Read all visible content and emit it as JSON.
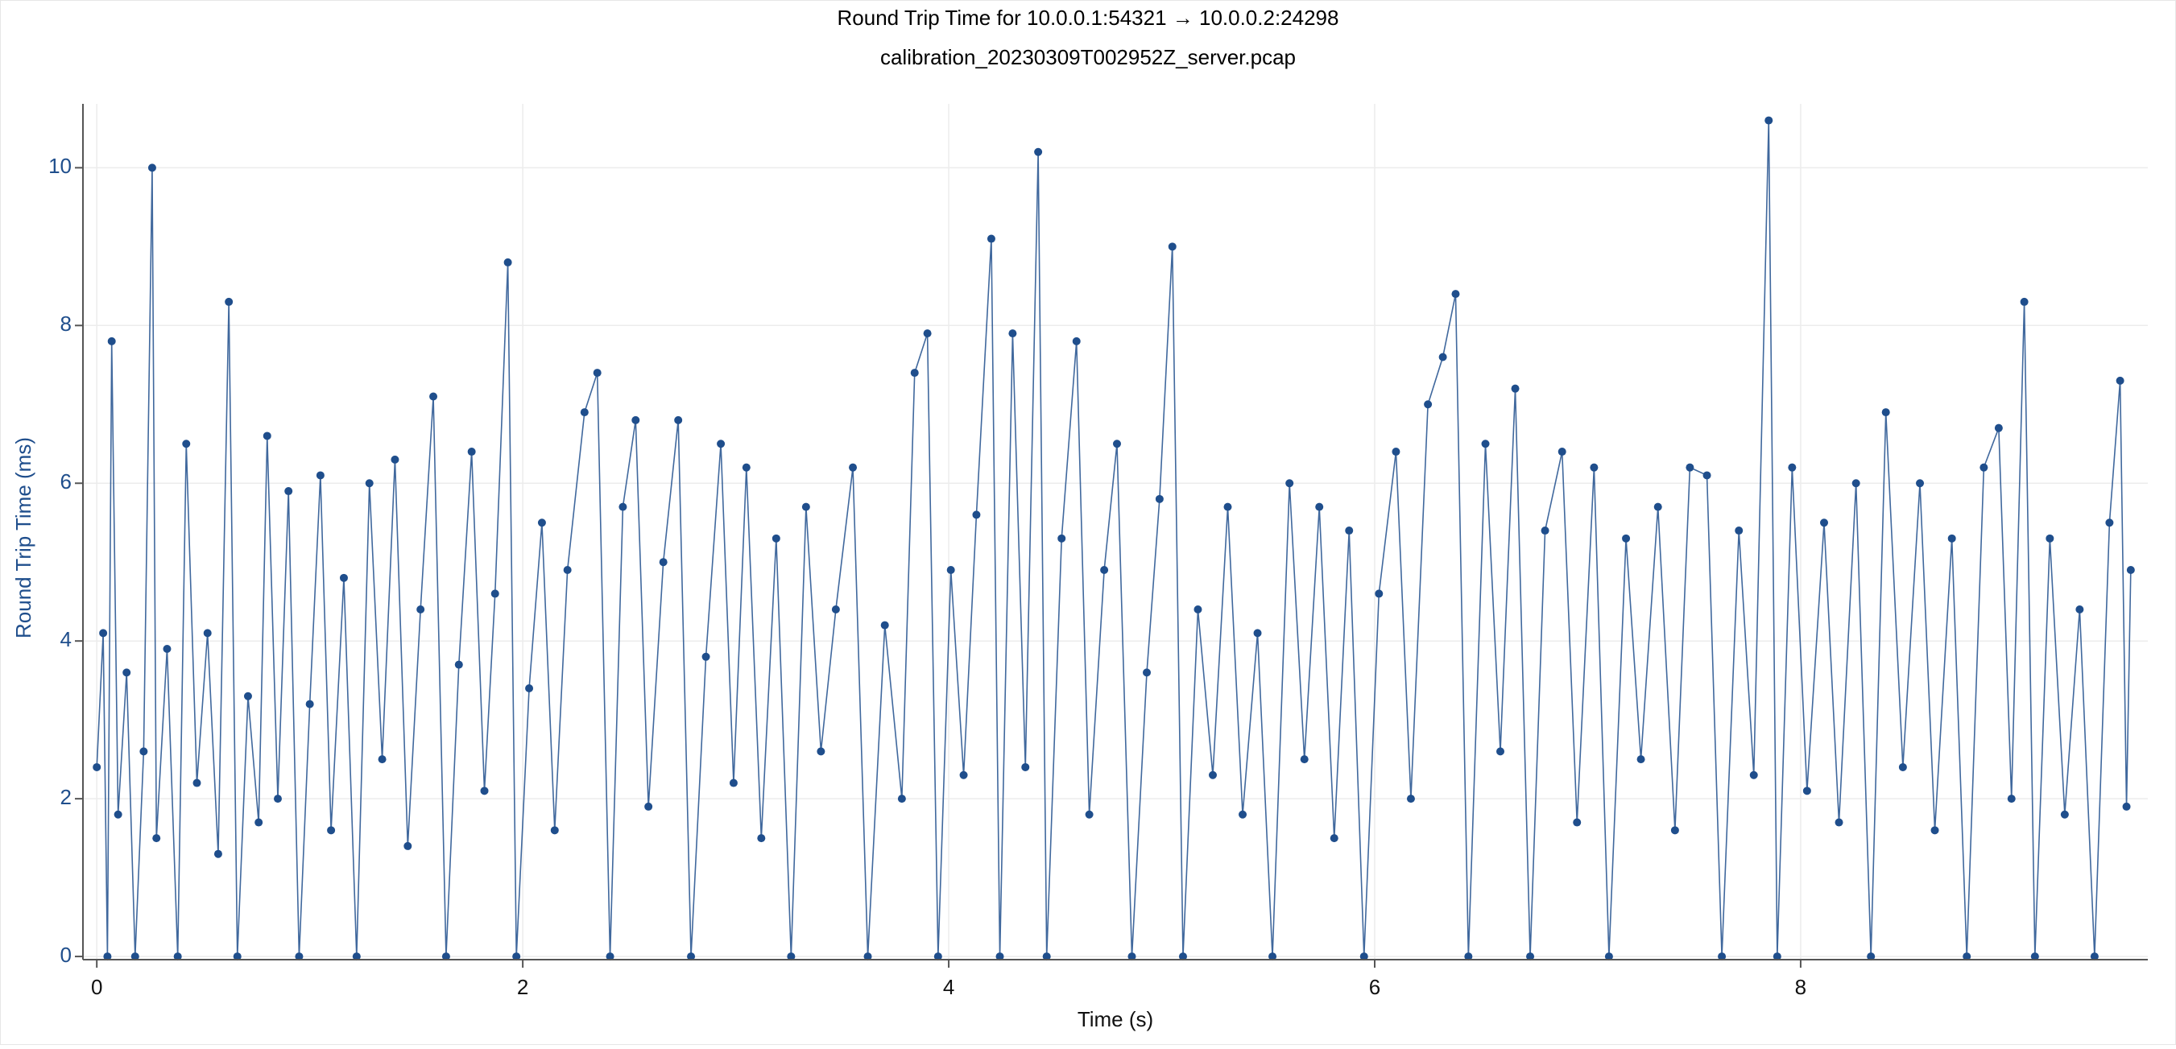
{
  "chart_data": {
    "type": "line",
    "title": "Round Trip Time for 10.0.0.1:54321 → 10.0.0.2:24298",
    "subtitle": "calibration_20230309T002952Z_server.pcap",
    "x_label": "Time (s)",
    "y_label": "Round Trip Time (ms)",
    "xlim": [
      -0.065,
      9.63
    ],
    "ylim": [
      -0.04,
      10.81
    ],
    "xticks": [
      0,
      2,
      4,
      6,
      8
    ],
    "yticks": [
      0,
      2,
      4,
      6,
      8,
      10
    ],
    "grid": true,
    "markers": true,
    "series": [
      {
        "color": "#1f4e8c",
        "x": [
          0.0,
          0.03,
          0.05,
          0.07,
          0.1,
          0.14,
          0.18,
          0.22,
          0.26,
          0.28,
          0.33,
          0.38,
          0.42,
          0.47,
          0.52,
          0.57,
          0.62,
          0.66,
          0.71,
          0.76,
          0.8,
          0.85,
          0.9,
          0.95,
          1.0,
          1.05,
          1.1,
          1.16,
          1.22,
          1.28,
          1.34,
          1.4,
          1.46,
          1.52,
          1.58,
          1.64,
          1.7,
          1.76,
          1.82,
          1.87,
          1.93,
          1.97,
          2.03,
          2.09,
          2.15,
          2.21,
          2.29,
          2.35,
          2.41,
          2.47,
          2.53,
          2.59,
          2.66,
          2.73,
          2.79,
          2.86,
          2.93,
          2.99,
          3.05,
          3.12,
          3.19,
          3.26,
          3.33,
          3.4,
          3.47,
          3.55,
          3.62,
          3.7,
          3.78,
          3.84,
          3.9,
          3.95,
          4.01,
          4.07,
          4.13,
          4.2,
          4.24,
          4.3,
          4.36,
          4.42,
          4.46,
          4.53,
          4.6,
          4.66,
          4.73,
          4.79,
          4.86,
          4.93,
          4.99,
          5.05,
          5.1,
          5.17,
          5.24,
          5.31,
          5.38,
          5.45,
          5.52,
          5.6,
          5.67,
          5.74,
          5.81,
          5.88,
          5.95,
          6.02,
          6.1,
          6.17,
          6.25,
          6.32,
          6.38,
          6.44,
          6.52,
          6.59,
          6.66,
          6.73,
          6.8,
          6.88,
          6.95,
          7.03,
          7.1,
          7.18,
          7.25,
          7.33,
          7.41,
          7.48,
          7.56,
          7.63,
          7.71,
          7.78,
          7.85,
          7.89,
          7.96,
          8.03,
          8.11,
          8.18,
          8.26,
          8.33,
          8.4,
          8.48,
          8.56,
          8.63,
          8.71,
          8.78,
          8.86,
          8.93,
          8.99,
          9.05,
          9.1,
          9.17,
          9.24,
          9.31,
          9.38,
          9.45,
          9.5,
          9.53,
          9.55
        ],
        "values": [
          2.4,
          4.1,
          0.0,
          7.8,
          1.8,
          3.6,
          0.0,
          2.6,
          10.0,
          1.5,
          3.9,
          0.0,
          6.5,
          2.2,
          4.1,
          1.3,
          8.3,
          0.0,
          3.3,
          1.7,
          6.6,
          2.0,
          5.9,
          0.0,
          3.2,
          6.1,
          1.6,
          4.8,
          0.0,
          6.0,
          2.5,
          6.3,
          1.4,
          4.4,
          7.1,
          0.0,
          3.7,
          6.4,
          2.1,
          4.6,
          8.8,
          0.0,
          3.4,
          5.5,
          1.6,
          4.9,
          6.9,
          7.4,
          0.0,
          5.7,
          6.8,
          1.9,
          5.0,
          6.8,
          0.0,
          3.8,
          6.5,
          2.2,
          6.2,
          1.5,
          5.3,
          0.0,
          5.7,
          2.6,
          4.4,
          6.2,
          0.0,
          4.2,
          2.0,
          7.4,
          7.9,
          0.0,
          4.9,
          2.3,
          5.6,
          9.1,
          0.0,
          7.9,
          2.4,
          10.2,
          0.0,
          5.3,
          7.8,
          1.8,
          4.9,
          6.5,
          0.0,
          3.6,
          5.8,
          9.0,
          0.0,
          4.4,
          2.3,
          5.7,
          1.8,
          4.1,
          0.0,
          6.0,
          2.5,
          5.7,
          1.5,
          5.4,
          0.0,
          4.6,
          6.4,
          2.0,
          7.0,
          7.6,
          8.4,
          0.0,
          6.5,
          2.6,
          7.2,
          0.0,
          5.4,
          6.4,
          1.7,
          6.2,
          0.0,
          5.3,
          2.5,
          5.7,
          1.6,
          6.2,
          6.1,
          0.0,
          5.4,
          2.3,
          10.6,
          0.0,
          6.2,
          2.1,
          5.5,
          1.7,
          6.0,
          0.0,
          6.9,
          2.4,
          6.0,
          1.6,
          5.3,
          0.0,
          6.2,
          6.7,
          2.0,
          8.3,
          0.0,
          5.3,
          1.8,
          4.4,
          0.0,
          5.5,
          7.3,
          1.9,
          4.9
        ]
      }
    ]
  }
}
